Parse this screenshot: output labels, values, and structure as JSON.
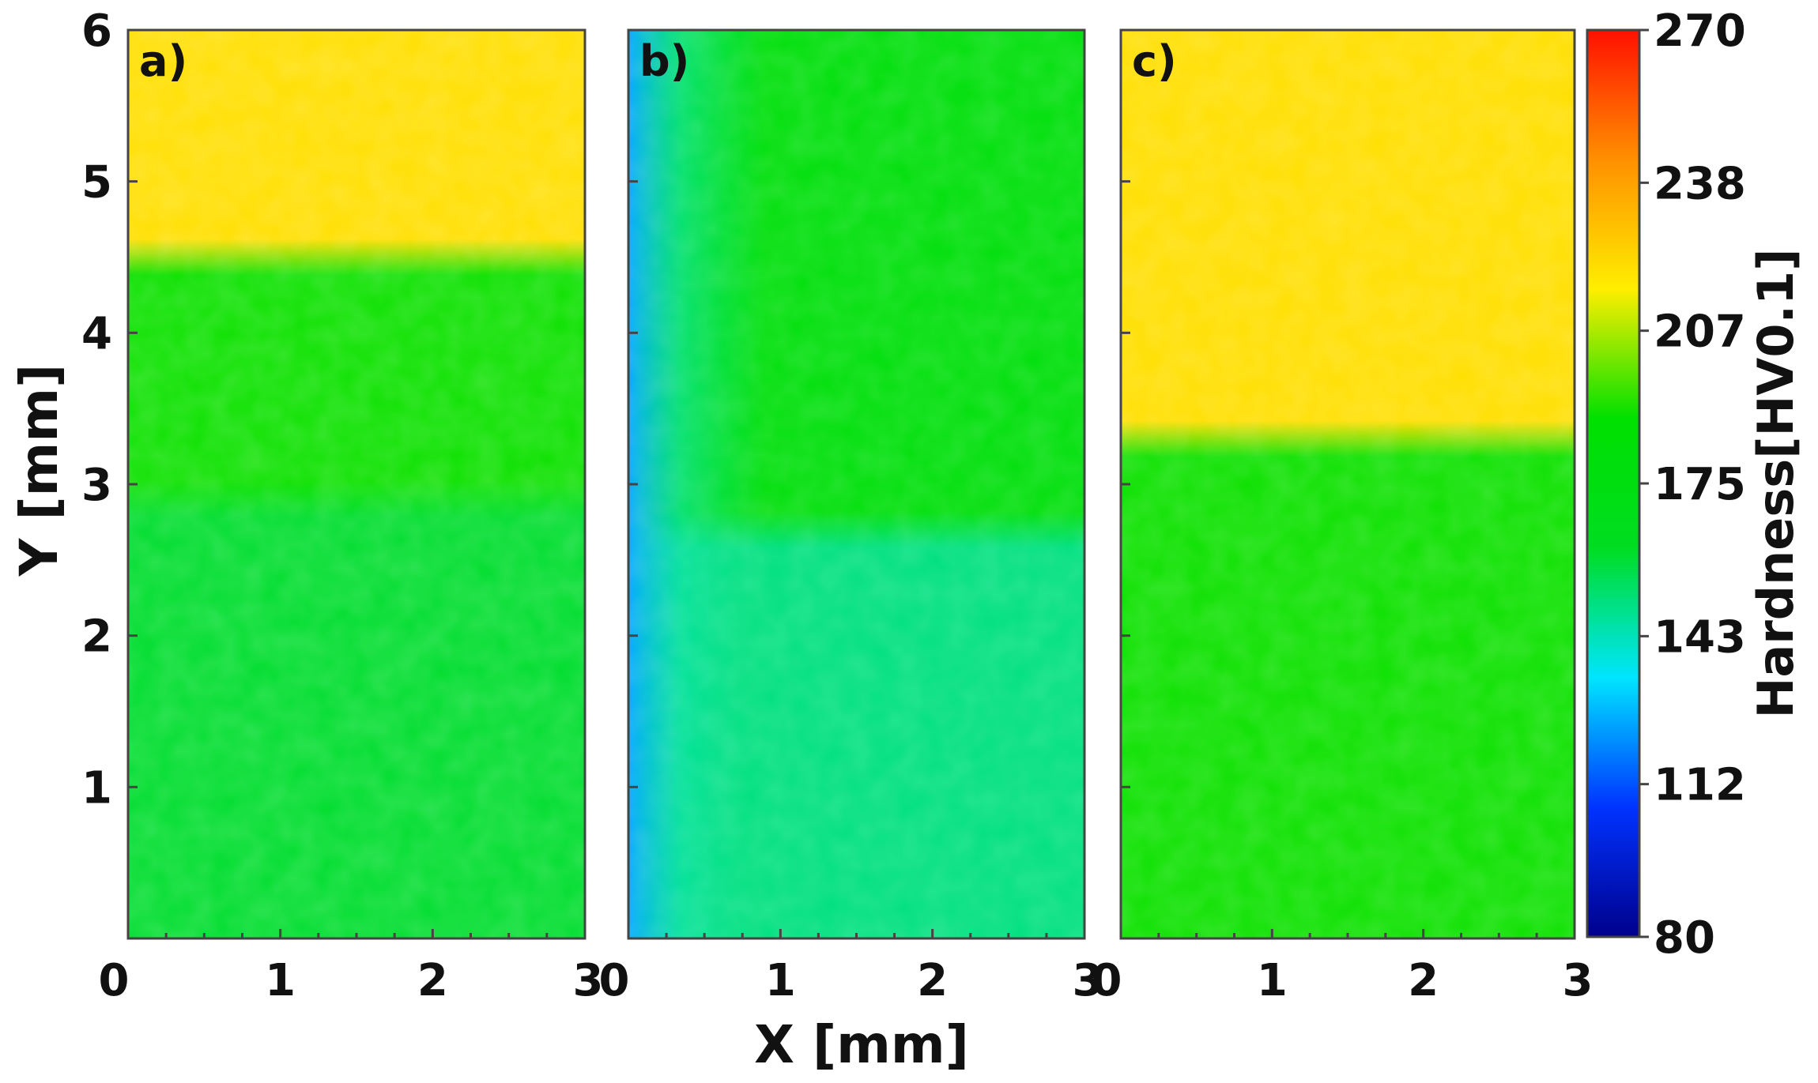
{
  "chart_data": {
    "type": "heatmap",
    "xlabel": "X [mm]",
    "ylabel": "Y [mm]",
    "xlim": [
      0,
      3
    ],
    "ylim": [
      0,
      6
    ],
    "x_ticks": [
      "0",
      "1",
      "2",
      "3"
    ],
    "y_ticks": [
      "1",
      "2",
      "3",
      "4",
      "5",
      "6"
    ],
    "colorbar": {
      "title": "Hardness[HV0.1]",
      "min": 80,
      "max": 270,
      "ticks": [
        "270",
        "238",
        "207",
        "175",
        "143",
        "112",
        "80"
      ],
      "colors": [
        "#00008c",
        "#0033ff",
        "#00e5ff",
        "#00dd22",
        "#00e000",
        "#ffee00",
        "#ff9000",
        "#ff1000"
      ]
    },
    "panels": [
      {
        "label": "a)",
        "bands": [
          {
            "y_from": 0,
            "y_to": 2.9,
            "hardness": 160
          },
          {
            "y_from": 2.9,
            "y_to": 4.5,
            "hardness": 190
          },
          {
            "y_from": 4.5,
            "y_to": 6,
            "hardness": 220
          }
        ]
      },
      {
        "label": "b)",
        "bands": [
          {
            "y_from": 0,
            "y_to": 2.7,
            "hardness": 150
          },
          {
            "y_from": 2.7,
            "y_to": 6,
            "hardness": 180
          }
        ],
        "left_edge_hardness": 125
      },
      {
        "label": "c)",
        "bands": [
          {
            "y_from": 0,
            "y_to": 3.3,
            "hardness": 190
          },
          {
            "y_from": 3.3,
            "y_to": 6,
            "hardness": 220
          }
        ]
      }
    ]
  }
}
